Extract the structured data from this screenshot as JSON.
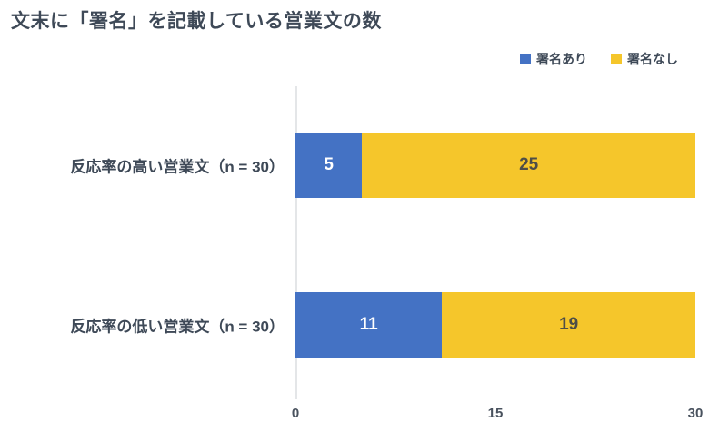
{
  "title": "文末に「署名」を記載している営業文の数",
  "colors": {
    "series_blue": "#4472C4",
    "series_yellow": "#F5C62B",
    "text_dark": "#3E4957",
    "label_on_blue": "#FFFFFF",
    "label_on_yellow": "#4E4E47",
    "axis_line": "#E4E6E8"
  },
  "legend": [
    {
      "label": "署名あり",
      "color": "#4472C4"
    },
    {
      "label": "署名なし",
      "color": "#F5C62B"
    }
  ],
  "chart_data": {
    "type": "bar",
    "orientation": "horizontal",
    "stacked": true,
    "title": "文末に「署名」を記載している営業文の数",
    "categories": [
      "反応率の高い営業文（n = 30）",
      "反応率の低い営業文（n = 30）"
    ],
    "series": [
      {
        "name": "署名あり",
        "color": "#4472C4",
        "values": [
          5,
          11
        ]
      },
      {
        "name": "署名なし",
        "color": "#F5C62B",
        "values": [
          25,
          19
        ]
      }
    ],
    "xlim": [
      0,
      30
    ],
    "x_ticks": [
      "0",
      "15",
      "30"
    ],
    "xlabel": "",
    "ylabel": "",
    "grid": false,
    "legend_position": "top-right"
  }
}
